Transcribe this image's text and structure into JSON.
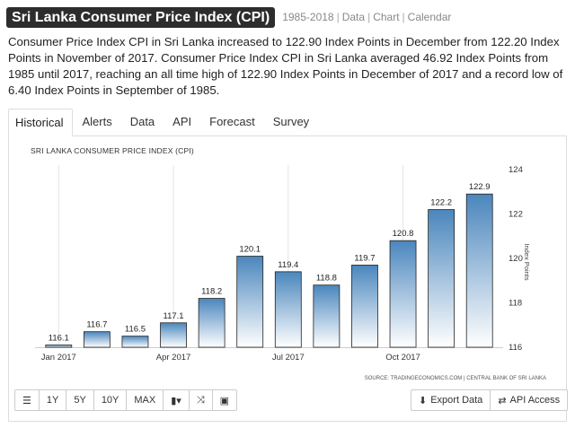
{
  "header": {
    "title": "Sri Lanka Consumer Price Index (CPI)",
    "range": "1985-2018",
    "links": [
      "Data",
      "Chart",
      "Calendar"
    ]
  },
  "description": "Consumer Price Index CPI in Sri Lanka increased to 122.90 Index Points in December from 122.20 Index Points in November of 2017. Consumer Price Index CPI in Sri Lanka averaged 46.92 Index Points from 1985 until 2017, reaching an all time high of 122.90 Index Points in December of 2017 and a record low of 6.40 Index Points in September of 1985.",
  "tabs": [
    {
      "label": "Historical",
      "active": true
    },
    {
      "label": "Alerts"
    },
    {
      "label": "Data"
    },
    {
      "label": "API"
    },
    {
      "label": "Forecast"
    },
    {
      "label": "Survey"
    }
  ],
  "chart_data": {
    "type": "bar",
    "title": "SRI LANKA CONSUMER PRICE INDEX (CPI)",
    "categories": [
      "Jan 2017",
      "Feb 2017",
      "Mar 2017",
      "Apr 2017",
      "May 2017",
      "Jun 2017",
      "Jul 2017",
      "Aug 2017",
      "Sep 2017",
      "Oct 2017",
      "Nov 2017",
      "Dec 2017"
    ],
    "values": [
      116.1,
      116.7,
      116.5,
      117.1,
      118.2,
      120.1,
      119.4,
      118.8,
      119.7,
      120.8,
      122.2,
      122.9
    ],
    "data_labels": [
      "116.1",
      "116.7",
      "116.5",
      "117.1",
      "118.2",
      "120.1",
      "119.4",
      "118.8",
      "119.7",
      "120.8",
      "122.2",
      "122.9"
    ],
    "x_tick_labels": [
      "Jan 2017",
      "Apr 2017",
      "Jul 2017",
      "Oct 2017"
    ],
    "x_tick_indices": [
      0,
      3,
      6,
      9
    ],
    "y_ticks": [
      116,
      118,
      120,
      122,
      124
    ],
    "ylim": [
      116,
      124
    ],
    "ylabel": "Index Points",
    "xlabel": "",
    "y_axis_side": "right",
    "grid": "vertical",
    "source": "SOURCE: TRADINGECONOMICS.COM | CENTRAL BANK OF SRI LANKA",
    "colors": {
      "bar_top": "#4a86bd",
      "bar_bottom": "#ffffff",
      "bar_stroke": "#222222"
    }
  },
  "toolbar": {
    "left_buttons": [
      {
        "kind": "icon",
        "icon": "menu-icon",
        "glyph": "☰"
      },
      {
        "kind": "text",
        "label": "1Y"
      },
      {
        "kind": "text",
        "label": "5Y"
      },
      {
        "kind": "text",
        "label": "10Y"
      },
      {
        "kind": "text",
        "label": "MAX"
      },
      {
        "kind": "icon",
        "icon": "bar-chart-dropdown-icon",
        "glyph": "▮▾"
      },
      {
        "kind": "icon",
        "icon": "shuffle-icon",
        "glyph": "⤨"
      },
      {
        "kind": "icon",
        "icon": "image-icon",
        "glyph": "▣"
      }
    ],
    "export": {
      "label": "Export Data",
      "icon": "download-icon",
      "glyph": "⬇"
    },
    "api": {
      "label": "API Access",
      "icon": "exchange-icon",
      "glyph": "⇄"
    }
  }
}
